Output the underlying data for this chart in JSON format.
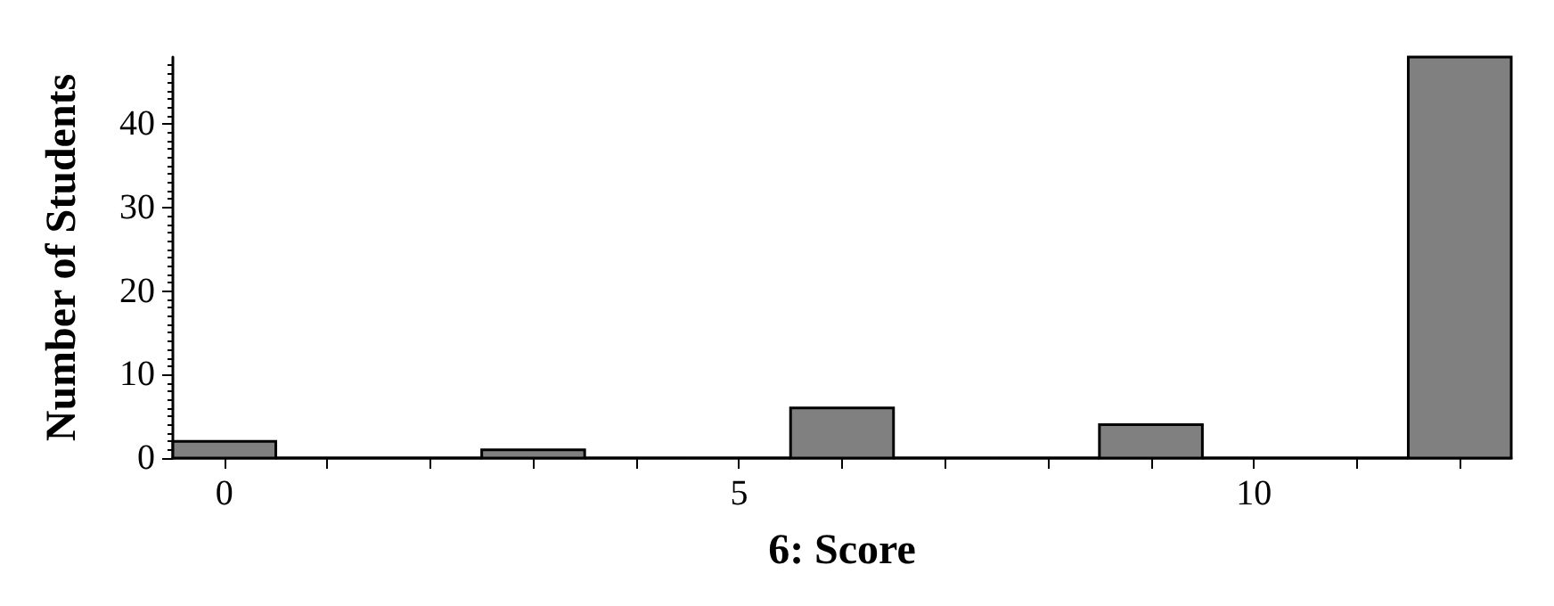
{
  "chart_data": {
    "type": "histogram",
    "xlabel": "6: Score",
    "ylabel": "Number of Students",
    "bins": [
      -0.5,
      0.5,
      1.5,
      2.5,
      3.5,
      4.5,
      5.5,
      6.5,
      7.5,
      8.5,
      9.5,
      10.5,
      11.5,
      12.5
    ],
    "values": [
      2,
      0,
      0,
      1,
      0,
      0,
      6,
      0,
      0,
      4,
      0,
      0,
      48
    ],
    "color": "#808080",
    "xlim": [
      -0.5,
      12.5
    ],
    "xticks": [
      0,
      {
        "value": 1,
        "label": null
      },
      {
        "value": 2,
        "label": null
      },
      {
        "value": 3,
        "label": null
      },
      {
        "value": 4,
        "label": null
      },
      5,
      {
        "value": 6,
        "label": null
      },
      {
        "value": 7,
        "label": null
      },
      {
        "value": 8,
        "label": null
      },
      {
        "value": 9,
        "label": null
      },
      10,
      {
        "value": 11,
        "label": null
      },
      {
        "value": 12,
        "label": null
      }
    ],
    "ylim": [
      0,
      48
    ],
    "yticks": [
      0,
      10,
      20,
      30,
      40
    ],
    "grid": false
  }
}
